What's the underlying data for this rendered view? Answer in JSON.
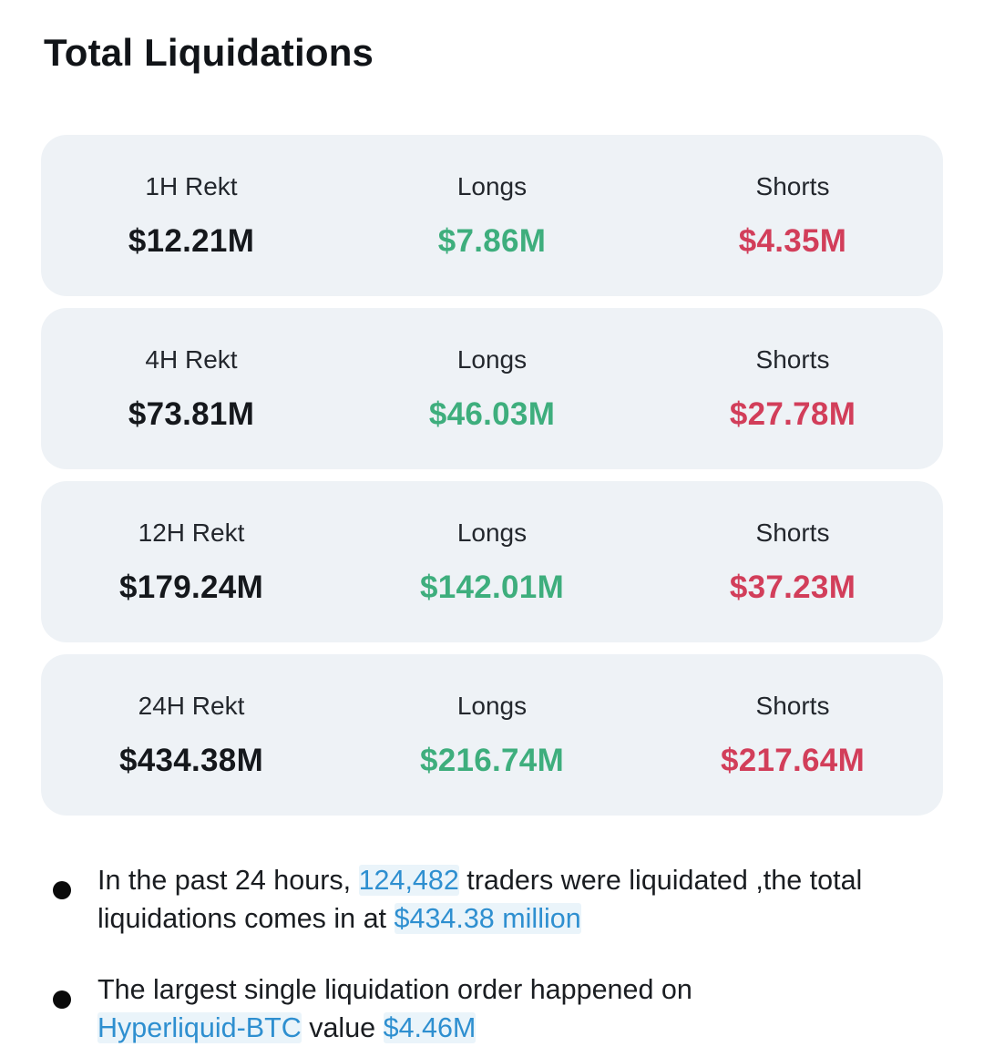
{
  "page": {
    "title": "Total Liquidations"
  },
  "colors": {
    "page_background": "#ffffff",
    "card_background": "#eef2f6",
    "longs_green": "#3eae7d",
    "shorts_red": "#d23e5a",
    "link_blue": "#2e8fd0",
    "text_dark": "#1a1d21"
  },
  "cards": [
    {
      "period_label": "1H Rekt",
      "period_value": "$12.21M",
      "longs_label": "Longs",
      "longs_value": "$7.86M",
      "shorts_label": "Shorts",
      "shorts_value": "$4.35M"
    },
    {
      "period_label": "4H Rekt",
      "period_value": "$73.81M",
      "longs_label": "Longs",
      "longs_value": "$46.03M",
      "shorts_label": "Shorts",
      "shorts_value": "$27.78M"
    },
    {
      "period_label": "12H Rekt",
      "period_value": "$179.24M",
      "longs_label": "Longs",
      "longs_value": "$142.01M",
      "shorts_label": "Shorts",
      "shorts_value": "$37.23M"
    },
    {
      "period_label": "24H Rekt",
      "period_value": "$434.38M",
      "longs_label": "Longs",
      "longs_value": "$216.74M",
      "shorts_label": "Shorts",
      "shorts_value": "$217.64M"
    }
  ],
  "bullets": [
    {
      "lead": "In the past 24 hours, ",
      "traders_count": "124,482",
      "mid": " traders were liquidated ,the total",
      "line2_lead": "liquidations comes in at ",
      "total_amount": "$434.38 million"
    },
    {
      "line1": "The largest single liquidation order happened on",
      "pair": "Hyperliquid-BTC",
      "mid": " value ",
      "order_value": "$4.46M"
    }
  ]
}
